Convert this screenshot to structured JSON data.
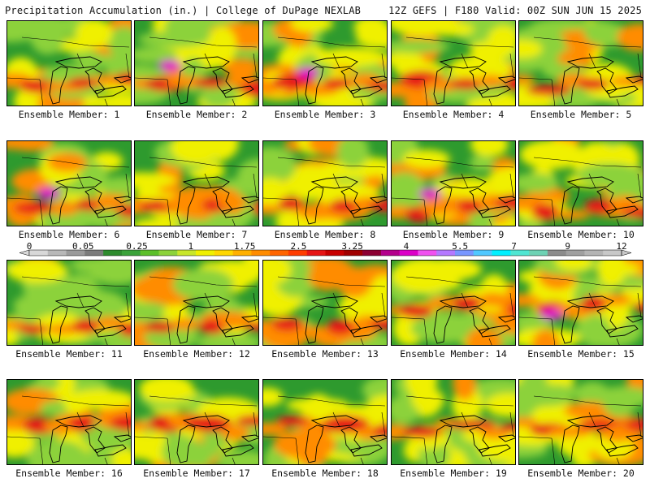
{
  "header": {
    "title": "Precipitation Accumulation (in.) | College of DuPage NEXLAB",
    "run_info": "12Z GEFS | F180 Valid: 00Z SUN JUN 15 2025"
  },
  "panels": [
    {
      "label": "Ensemble Member: 1"
    },
    {
      "label": "Ensemble Member: 2"
    },
    {
      "label": "Ensemble Member: 3"
    },
    {
      "label": "Ensemble Member: 4"
    },
    {
      "label": "Ensemble Member: 5"
    },
    {
      "label": "Ensemble Member: 6"
    },
    {
      "label": "Ensemble Member: 7"
    },
    {
      "label": "Ensemble Member: 8"
    },
    {
      "label": "Ensemble Member: 9"
    },
    {
      "label": "Ensemble Member: 10"
    },
    {
      "label": "Ensemble Member: 11"
    },
    {
      "label": "Ensemble Member: 12"
    },
    {
      "label": "Ensemble Member: 13"
    },
    {
      "label": "Ensemble Member: 14"
    },
    {
      "label": "Ensemble Member: 15"
    },
    {
      "label": "Ensemble Member: 16"
    },
    {
      "label": "Ensemble Member: 17"
    },
    {
      "label": "Ensemble Member: 18"
    },
    {
      "label": "Ensemble Member: 19"
    },
    {
      "label": "Ensemble Member: 20"
    }
  ],
  "colorbar": {
    "tick_labels": [
      "0",
      "0.05",
      "0.25",
      "1",
      "1.75",
      "2.5",
      "3.25",
      "4",
      "5.5",
      "7",
      "9",
      "12"
    ],
    "colors": [
      "#d8d8d8",
      "#b8b8b8",
      "#9a9a9a",
      "#7c7c7c",
      "#2e8b2e",
      "#3aa23a",
      "#5cbf2a",
      "#8cd23a",
      "#c8e62a",
      "#f0f000",
      "#ffd700",
      "#ffb000",
      "#ff8c00",
      "#ff6400",
      "#ff3c00",
      "#e61414",
      "#c80000",
      "#a00000",
      "#8c0032",
      "#b4008c",
      "#dc00c8",
      "#f050f0",
      "#b478ff",
      "#7896ff",
      "#50c8ff",
      "#00f0ff",
      "#50e6d2",
      "#6ed2b4",
      "#8c8c8c",
      "#a0a0a0",
      "#b4b4b4",
      "#c8c8c8"
    ]
  },
  "colors": {
    "land_green": "#2e9a2e",
    "light_green": "#8cd23a",
    "yellow": "#f0f000",
    "orange": "#ff8c00",
    "red": "#e61414",
    "magenta": "#dc00c8",
    "cyan": "#00f0ff",
    "outline": "#000000"
  }
}
